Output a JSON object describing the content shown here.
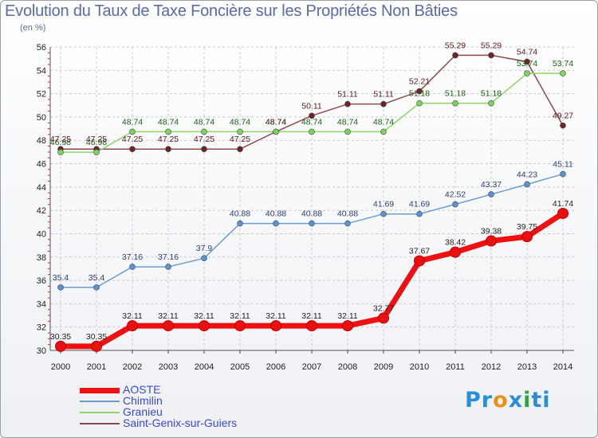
{
  "title": "Evolution du Taux de Taxe Foncière sur les Propriétés Non Bâties",
  "subtitle": "(en %)",
  "logo": {
    "text": "Proxiti",
    "letters": [
      "P",
      "r",
      "o",
      "x",
      "i",
      "t",
      "i"
    ],
    "colors": [
      "#2a8fd6",
      "#2a8fd6",
      "#e8901a",
      "#2a8fd6",
      "#33a043",
      "#2a8fd6",
      "#2a8fd6"
    ]
  },
  "chart_data": {
    "type": "line",
    "title": "Evolution du Taux de Taxe Foncière sur les Propriétés Non Bâties",
    "ylabel": "(en %)",
    "xlabel": "",
    "ylim": [
      30,
      56
    ],
    "yticks": [
      30,
      32,
      34,
      36,
      38,
      40,
      42,
      44,
      46,
      48,
      50,
      52,
      54,
      56
    ],
    "grid": true,
    "legend_position": "bottom-left",
    "categories": [
      "2000",
      "2001",
      "2002",
      "2003",
      "2004",
      "2005",
      "2006",
      "2007",
      "2008",
      "2009",
      "2010",
      "2011",
      "2012",
      "2013",
      "2014"
    ],
    "series": [
      {
        "name": "AOSTE",
        "color": "#ee1111",
        "point_color": "#e81010",
        "width": 7,
        "radius": 6.5,
        "values": [
          30.35,
          30.35,
          32.11,
          32.11,
          32.11,
          32.11,
          32.11,
          32.11,
          32.11,
          32.77,
          37.67,
          38.42,
          39.38,
          39.75,
          41.74
        ],
        "labels": [
          "30.35",
          "30.35",
          "32.11",
          "32.11",
          "32.11",
          "32.11",
          "32.11",
          "32.11",
          "32.11",
          "32.77",
          "37.67",
          "38.42",
          "39.38",
          "39.75",
          "41.74"
        ]
      },
      {
        "name": "Chimilin",
        "color": "#6c9ccd",
        "point_color": "#5a93d0",
        "width": 1.5,
        "radius": 3.5,
        "values": [
          35.4,
          35.4,
          37.16,
          37.16,
          37.9,
          40.88,
          40.88,
          40.88,
          40.88,
          41.69,
          41.69,
          42.52,
          43.37,
          44.23,
          45.11
        ],
        "labels": [
          "35.4",
          "35.4",
          "37.16",
          "37.16",
          "37.9",
          "40.88",
          "40.88",
          "40.88",
          "40.88",
          "41.69",
          "41.69",
          "42.52",
          "43.37",
          "44.23",
          "45.11"
        ]
      },
      {
        "name": "Granieu",
        "color": "#8fd46a",
        "point_color": "#7ed555",
        "width": 1.5,
        "radius": 3.5,
        "values": [
          46.98,
          46.98,
          48.74,
          48.74,
          48.74,
          48.74,
          48.74,
          48.74,
          48.74,
          48.74,
          51.18,
          51.18,
          51.18,
          53.74,
          53.74
        ],
        "labels": [
          "46.98",
          "46.98",
          "48.74",
          "48.74",
          "48.74",
          "48.74",
          "48.74",
          "48.74",
          "48.74",
          "48.74",
          "51.18",
          "51.18",
          "51.18",
          "53.74",
          "53.74"
        ]
      },
      {
        "name": "Saint-Genix-sur-Guiers",
        "color": "#8c4a4a",
        "point_color": "#6e2424",
        "width": 1.5,
        "radius": 3.5,
        "values": [
          47.25,
          47.25,
          47.25,
          47.25,
          47.25,
          47.25,
          48.74,
          50.11,
          51.11,
          51.11,
          52.21,
          55.29,
          55.29,
          54.74,
          49.27
        ],
        "labels": [
          "47.25",
          "47.25",
          "47.25",
          "47.25",
          "47.25",
          "47.25",
          "48.74",
          "50.11",
          "51.11",
          "51.11",
          "52.21",
          "55.29",
          "55.29",
          "54.74",
          "49.27"
        ]
      }
    ]
  }
}
